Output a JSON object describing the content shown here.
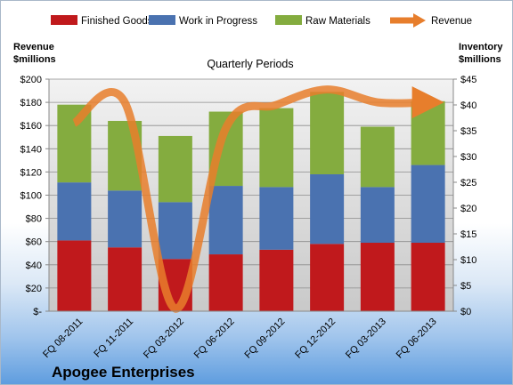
{
  "chart_data": {
    "type": "bar",
    "stacked": true,
    "subtitle": "Quarterly Periods",
    "company": "Apogee Enterprises",
    "ylabel_left": [
      "Revenue",
      "$millions"
    ],
    "ylabel_right": [
      "Inventory",
      "$millions"
    ],
    "categories": [
      "FQ 08-2011",
      "FQ 11-2011",
      "FQ 03-2012",
      "FQ 06-2012",
      "FQ 09-2012",
      "FQ 12-2012",
      "FQ 03-2013",
      "FQ 06-2013"
    ],
    "series": [
      {
        "name": "Finished Goods",
        "color": "#c0191c",
        "values": [
          61,
          55,
          45,
          49,
          53,
          58,
          59,
          59
        ]
      },
      {
        "name": "Work in Progress",
        "color": "#4a72b0",
        "values": [
          50,
          49,
          49,
          59,
          54,
          60,
          48,
          67
        ]
      },
      {
        "name": "Raw Materials",
        "color": "#84ac3f",
        "values": [
          67,
          60,
          57,
          64,
          68,
          71,
          52,
          55
        ]
      }
    ],
    "line_series": {
      "name": "Revenue",
      "color": "#e77e2c",
      "axis": "right",
      "values": [
        36.5,
        40.5,
        0.5,
        35.5,
        40,
        43,
        40.5,
        40.5
      ]
    },
    "ylim_left": [
      0,
      200
    ],
    "ylim_right": [
      0,
      45
    ],
    "left_ticks": [
      "$-",
      "$20",
      "$40",
      "$60",
      "$80",
      "$100",
      "$120",
      "$140",
      "$160",
      "$180",
      "$200"
    ],
    "right_ticks": [
      "$0",
      "$5",
      "$10",
      "$15",
      "$20",
      "$25",
      "$30",
      "$35",
      "$40",
      "$45"
    ],
    "legend_position": "top",
    "grid": true
  }
}
